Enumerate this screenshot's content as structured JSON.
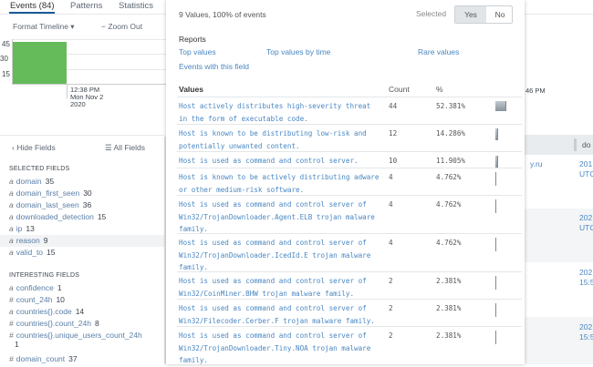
{
  "tabs": [
    {
      "label": "Events (84)",
      "active": true
    },
    {
      "label": "Patterns"
    },
    {
      "label": "Statistics"
    }
  ],
  "timeline": {
    "format_label": "Format Timeline ▾",
    "zoom_out_label": "− Zoom Out",
    "y_ticks": [
      "45",
      "30",
      "15"
    ],
    "bar_color": "#65bb5a",
    "bar_value": 44,
    "x_label": [
      "12:38 PM",
      "Mon Nov 2",
      "2020"
    ],
    "right_x_label": "46 PM"
  },
  "sidebar": {
    "hide_fields": "‹ Hide Fields",
    "all_fields": "☰ All Fields",
    "selected_header": "SELECTED FIELDS",
    "selected": [
      {
        "type": "a",
        "name": "domain",
        "count": "35"
      },
      {
        "type": "a",
        "name": "domain_first_seen",
        "count": "30"
      },
      {
        "type": "a",
        "name": "domain_last_seen",
        "count": "36"
      },
      {
        "type": "a",
        "name": "downloaded_detection",
        "count": "15"
      },
      {
        "type": "a",
        "name": "ip",
        "count": "13"
      },
      {
        "type": "a",
        "name": "reason",
        "count": "9"
      },
      {
        "type": "a",
        "name": "valid_to",
        "count": "15"
      }
    ],
    "interesting_header": "INTERESTING FIELDS",
    "interesting": [
      {
        "type": "a",
        "name": "confidence",
        "count": "1"
      },
      {
        "type": "#",
        "name": "count_24h",
        "count": "10"
      },
      {
        "type": "a",
        "name": "countries{}.code",
        "count": "14"
      },
      {
        "type": "#",
        "name": "countries{}.count_24h",
        "count": "8"
      },
      {
        "type": "#",
        "name": "countries{}.unique_users_count_24h",
        "count": "1"
      },
      {
        "type": "#",
        "name": "domain_count",
        "count": "37"
      }
    ]
  },
  "popup": {
    "summary": "9 Values, 100% of events",
    "selected_label": "Selected",
    "yes": "Yes",
    "no": "No",
    "reports_label": "Reports",
    "reports": [
      "Top values",
      "Top values by time",
      "Rare values",
      "Events with this field"
    ],
    "col_values": "Values",
    "col_count": "Count",
    "col_pct": "%",
    "rows": [
      {
        "value": "Host actively distributes high-severity threat in the form of executable code.",
        "count": "44",
        "pct": "52.381%",
        "frac": 0.52381
      },
      {
        "value": "Host is known to be distributing low-risk and potentially unwanted content.",
        "count": "12",
        "pct": "14.286%",
        "frac": 0.14286
      },
      {
        "value": "Host is used as command and control server.",
        "count": "10",
        "pct": "11.905%",
        "frac": 0.11905
      },
      {
        "value": "Host is known to be actively distributing adware or other medium-risk software.",
        "count": "4",
        "pct": "4.762%",
        "frac": 0.04762
      },
      {
        "value": "Host is used as command and control server of Win32/TrojanDownloader.Agent.ELB trojan malware family.",
        "count": "4",
        "pct": "4.762%",
        "frac": 0.04762
      },
      {
        "value": "Host is used as command and control server of Win32/TrojanDownloader.IcedId.E trojan malware family.",
        "count": "4",
        "pct": "4.762%",
        "frac": 0.04762
      },
      {
        "value": "Host is used as command and control server of Win32/CoinMiner.BHW trojan malware family.",
        "count": "2",
        "pct": "2.381%",
        "frac": 0.02381
      },
      {
        "value": "Host is used as command and control server of Win32/Filecoder.Cerber.F trojan malware family.",
        "count": "2",
        "pct": "2.381%",
        "frac": 0.02381
      },
      {
        "value": "Host is used as command and control server of Win32/TrojanDownloader.Tiny.NOA trojan malware family.",
        "count": "2",
        "pct": "2.381%",
        "frac": 0.02381
      }
    ]
  },
  "right_table": {
    "header": "do",
    "cells": [
      {
        "a": "y.ru",
        "b": "201",
        "c": "UTC"
      },
      {
        "b": "202",
        "c": "UTC"
      },
      {
        "b": "202",
        "c": "15:5"
      },
      {
        "b": "202",
        "c": "15:5"
      }
    ]
  }
}
